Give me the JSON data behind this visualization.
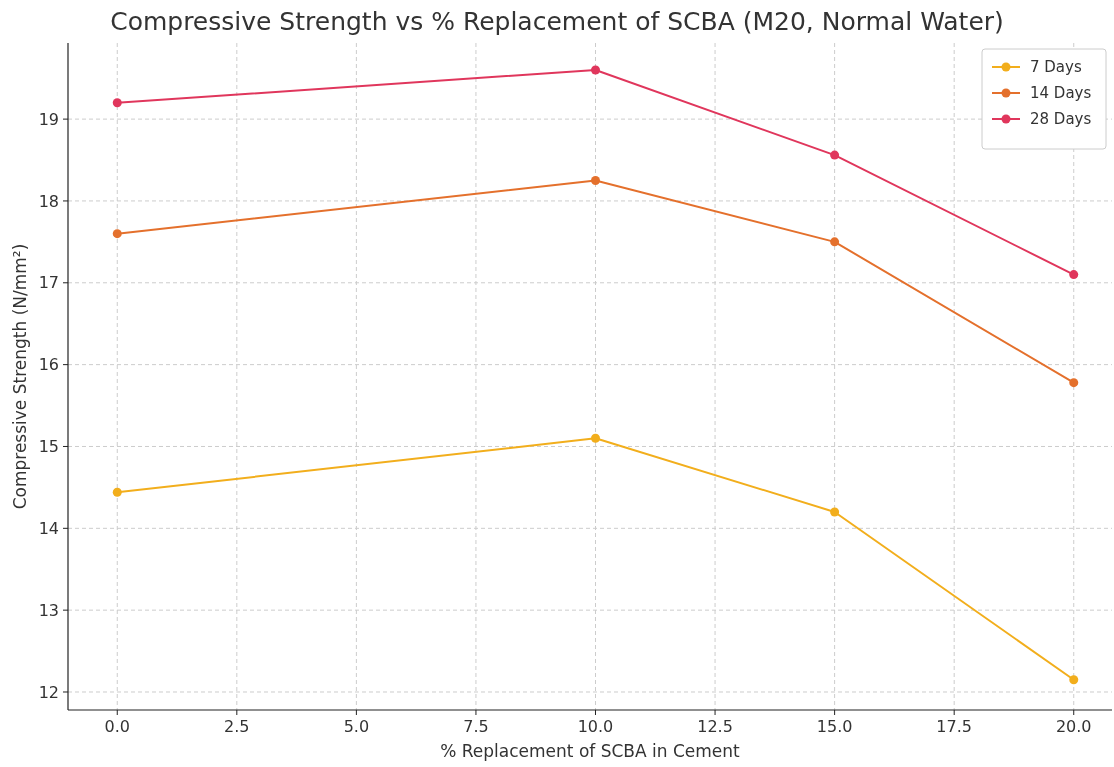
{
  "chart_data": {
    "type": "line",
    "title": "Compressive Strength vs % Replacement of SCBA (M20, Normal Water)",
    "xlabel": "% Replacement of SCBA in Cement",
    "ylabel": "Compressive Strength (N/mm²)",
    "x": [
      0,
      10,
      15,
      20
    ],
    "series": [
      {
        "name": "7 Days",
        "color": "#f2ae1c",
        "values": [
          14.44,
          15.1,
          14.2,
          12.15
        ]
      },
      {
        "name": "14 Days",
        "color": "#e4702c",
        "values": [
          17.6,
          18.25,
          17.5,
          15.78
        ]
      },
      {
        "name": "28 Days",
        "color": "#e0365c",
        "values": [
          19.2,
          19.6,
          18.56,
          17.1
        ]
      }
    ],
    "xlim": [
      -1.03,
      20.8
    ],
    "xticks": [
      {
        "value": 0,
        "label": "0.0"
      },
      {
        "value": 2.5,
        "label": "2.5"
      },
      {
        "value": 5,
        "label": "5.0"
      },
      {
        "value": 7.5,
        "label": "7.5"
      },
      {
        "value": 10,
        "label": "10.0"
      },
      {
        "value": 12.5,
        "label": "12.5"
      },
      {
        "value": 15,
        "label": "15.0"
      },
      {
        "value": 17.5,
        "label": "17.5"
      },
      {
        "value": 20,
        "label": "20.0"
      }
    ],
    "ylim": [
      11.78,
      19.93
    ],
    "yticks": [
      12,
      13,
      14,
      15,
      16,
      17,
      18,
      19
    ],
    "grid": true,
    "legend": "top right",
    "marker": "circle",
    "line_style": "solid"
  }
}
